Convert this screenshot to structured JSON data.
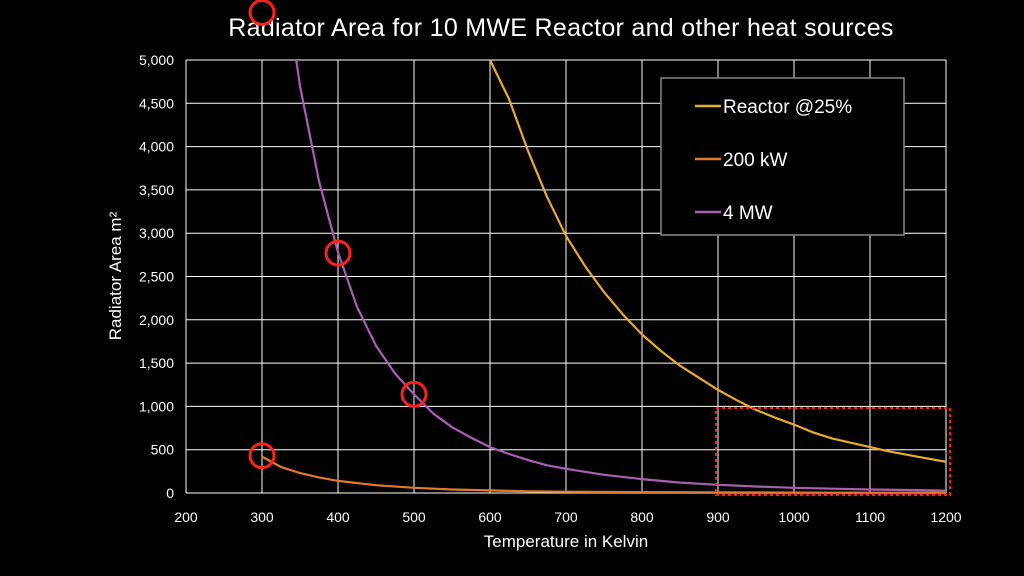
{
  "chart_data": {
    "type": "line",
    "title": "Radiator Area for 10 MWE Reactor and other heat sources",
    "xlabel": "Temperature in Kelvin",
    "ylabel": "Radiator Area m²",
    "xlim": [
      200,
      1200
    ],
    "ylim": [
      0,
      5000
    ],
    "x_ticks": [
      "200",
      "300",
      "400",
      "500",
      "600",
      "700",
      "800",
      "900",
      "1000",
      "1100",
      "1200"
    ],
    "y_ticks": [
      "0",
      "500",
      "1,000",
      "1,500",
      "2,000",
      "2,500",
      "3,000",
      "3,500",
      "4,000",
      "4,500",
      "5,000"
    ],
    "grid": true,
    "legend_position": "top-right",
    "series": [
      {
        "name": "Reactor @25%",
        "color": "#e6ad2e",
        "x": [
          600,
          625,
          650,
          675,
          700,
          725,
          750,
          775,
          800,
          825,
          850,
          875,
          900,
          925,
          950,
          975,
          1000,
          1025,
          1050,
          1075,
          1100,
          1125,
          1150,
          1175,
          1200
        ],
        "y": [
          5000,
          4550,
          3950,
          3420,
          2970,
          2620,
          2320,
          2060,
          1830,
          1640,
          1470,
          1330,
          1190,
          1070,
          960,
          870,
          790,
          700,
          630,
          580,
          530,
          480,
          440,
          400,
          360
        ]
      },
      {
        "name": "200 kW",
        "color": "#e07a2e",
        "x": [
          300,
          325,
          350,
          375,
          400,
          450,
          500,
          550,
          600,
          650,
          700,
          800,
          900,
          1000,
          1100,
          1200
        ],
        "y": [
          420,
          300,
          230,
          180,
          140,
          90,
          60,
          40,
          30,
          20,
          15,
          10,
          7,
          5,
          4,
          3
        ]
      },
      {
        "name": "4 MW",
        "color": "#a761b1",
        "x": [
          345,
          350,
          375,
          400,
          425,
          450,
          475,
          500,
          525,
          550,
          575,
          600,
          625,
          650,
          675,
          700,
          750,
          800,
          850,
          900,
          950,
          1000,
          1050,
          1100,
          1150,
          1200
        ],
        "y": [
          5000,
          4700,
          3600,
          2780,
          2150,
          1700,
          1380,
          1140,
          920,
          760,
          640,
          530,
          450,
          380,
          320,
          280,
          210,
          160,
          120,
          95,
          75,
          60,
          50,
          40,
          35,
          28
        ]
      }
    ],
    "annotations": {
      "circle_markers": [
        {
          "x": 300,
          "y": 5550
        },
        {
          "x": 400,
          "y": 2770
        },
        {
          "x": 500,
          "y": 1140
        },
        {
          "x": 300,
          "y": 430
        }
      ],
      "highlight_box": {
        "x_from": 900,
        "x_to": 1200,
        "y_from": 0,
        "y_to": 980
      }
    },
    "colors": {
      "background": "#000000",
      "grid": "#ffffff",
      "annotation": "#ff2020",
      "legend_border": "#888888",
      "legend_bg": "#000000"
    }
  }
}
